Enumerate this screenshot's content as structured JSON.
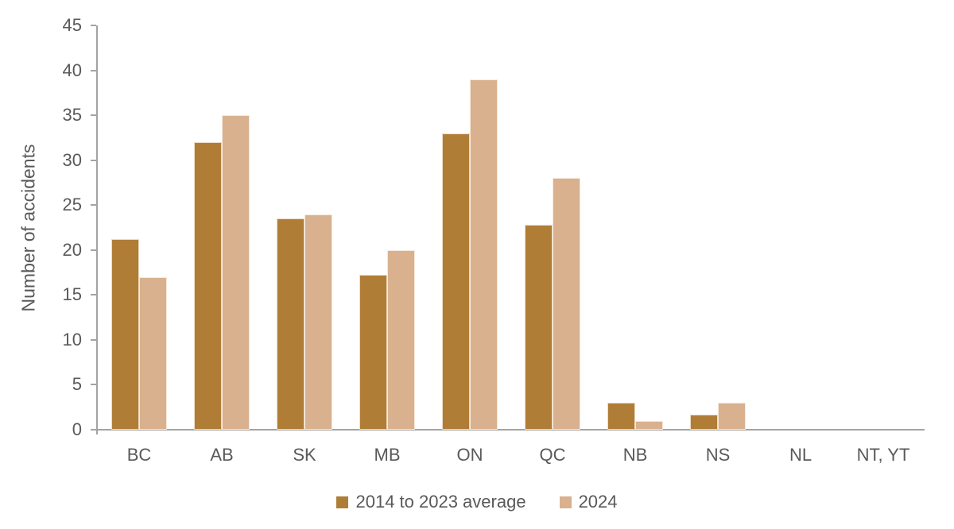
{
  "chart_data": {
    "type": "bar",
    "title": "",
    "xlabel": "",
    "ylabel": "Number of accidents",
    "categories": [
      "BC",
      "AB",
      "SK",
      "MB",
      "ON",
      "QC",
      "NB",
      "NS",
      "NL",
      "NT, YT"
    ],
    "series": [
      {
        "name": "2014 to 2023 average",
        "color": "#B07D36",
        "values": [
          21.2,
          32,
          23.5,
          17.2,
          33,
          22.8,
          3,
          1.7,
          0,
          0
        ]
      },
      {
        "name": "2024",
        "color": "#D9B18E",
        "values": [
          17,
          35,
          24,
          20,
          39,
          28,
          1,
          3,
          0,
          0
        ]
      }
    ],
    "ylim": [
      0,
      45
    ],
    "yticks": [
      0,
      5,
      10,
      15,
      20,
      25,
      30,
      35,
      40,
      45
    ],
    "grid": false,
    "legend_position": "bottom"
  },
  "colors": {
    "series1": "#B07D36",
    "series2": "#D9B18E",
    "axis": "#A3A3A3",
    "text": "#595959"
  }
}
